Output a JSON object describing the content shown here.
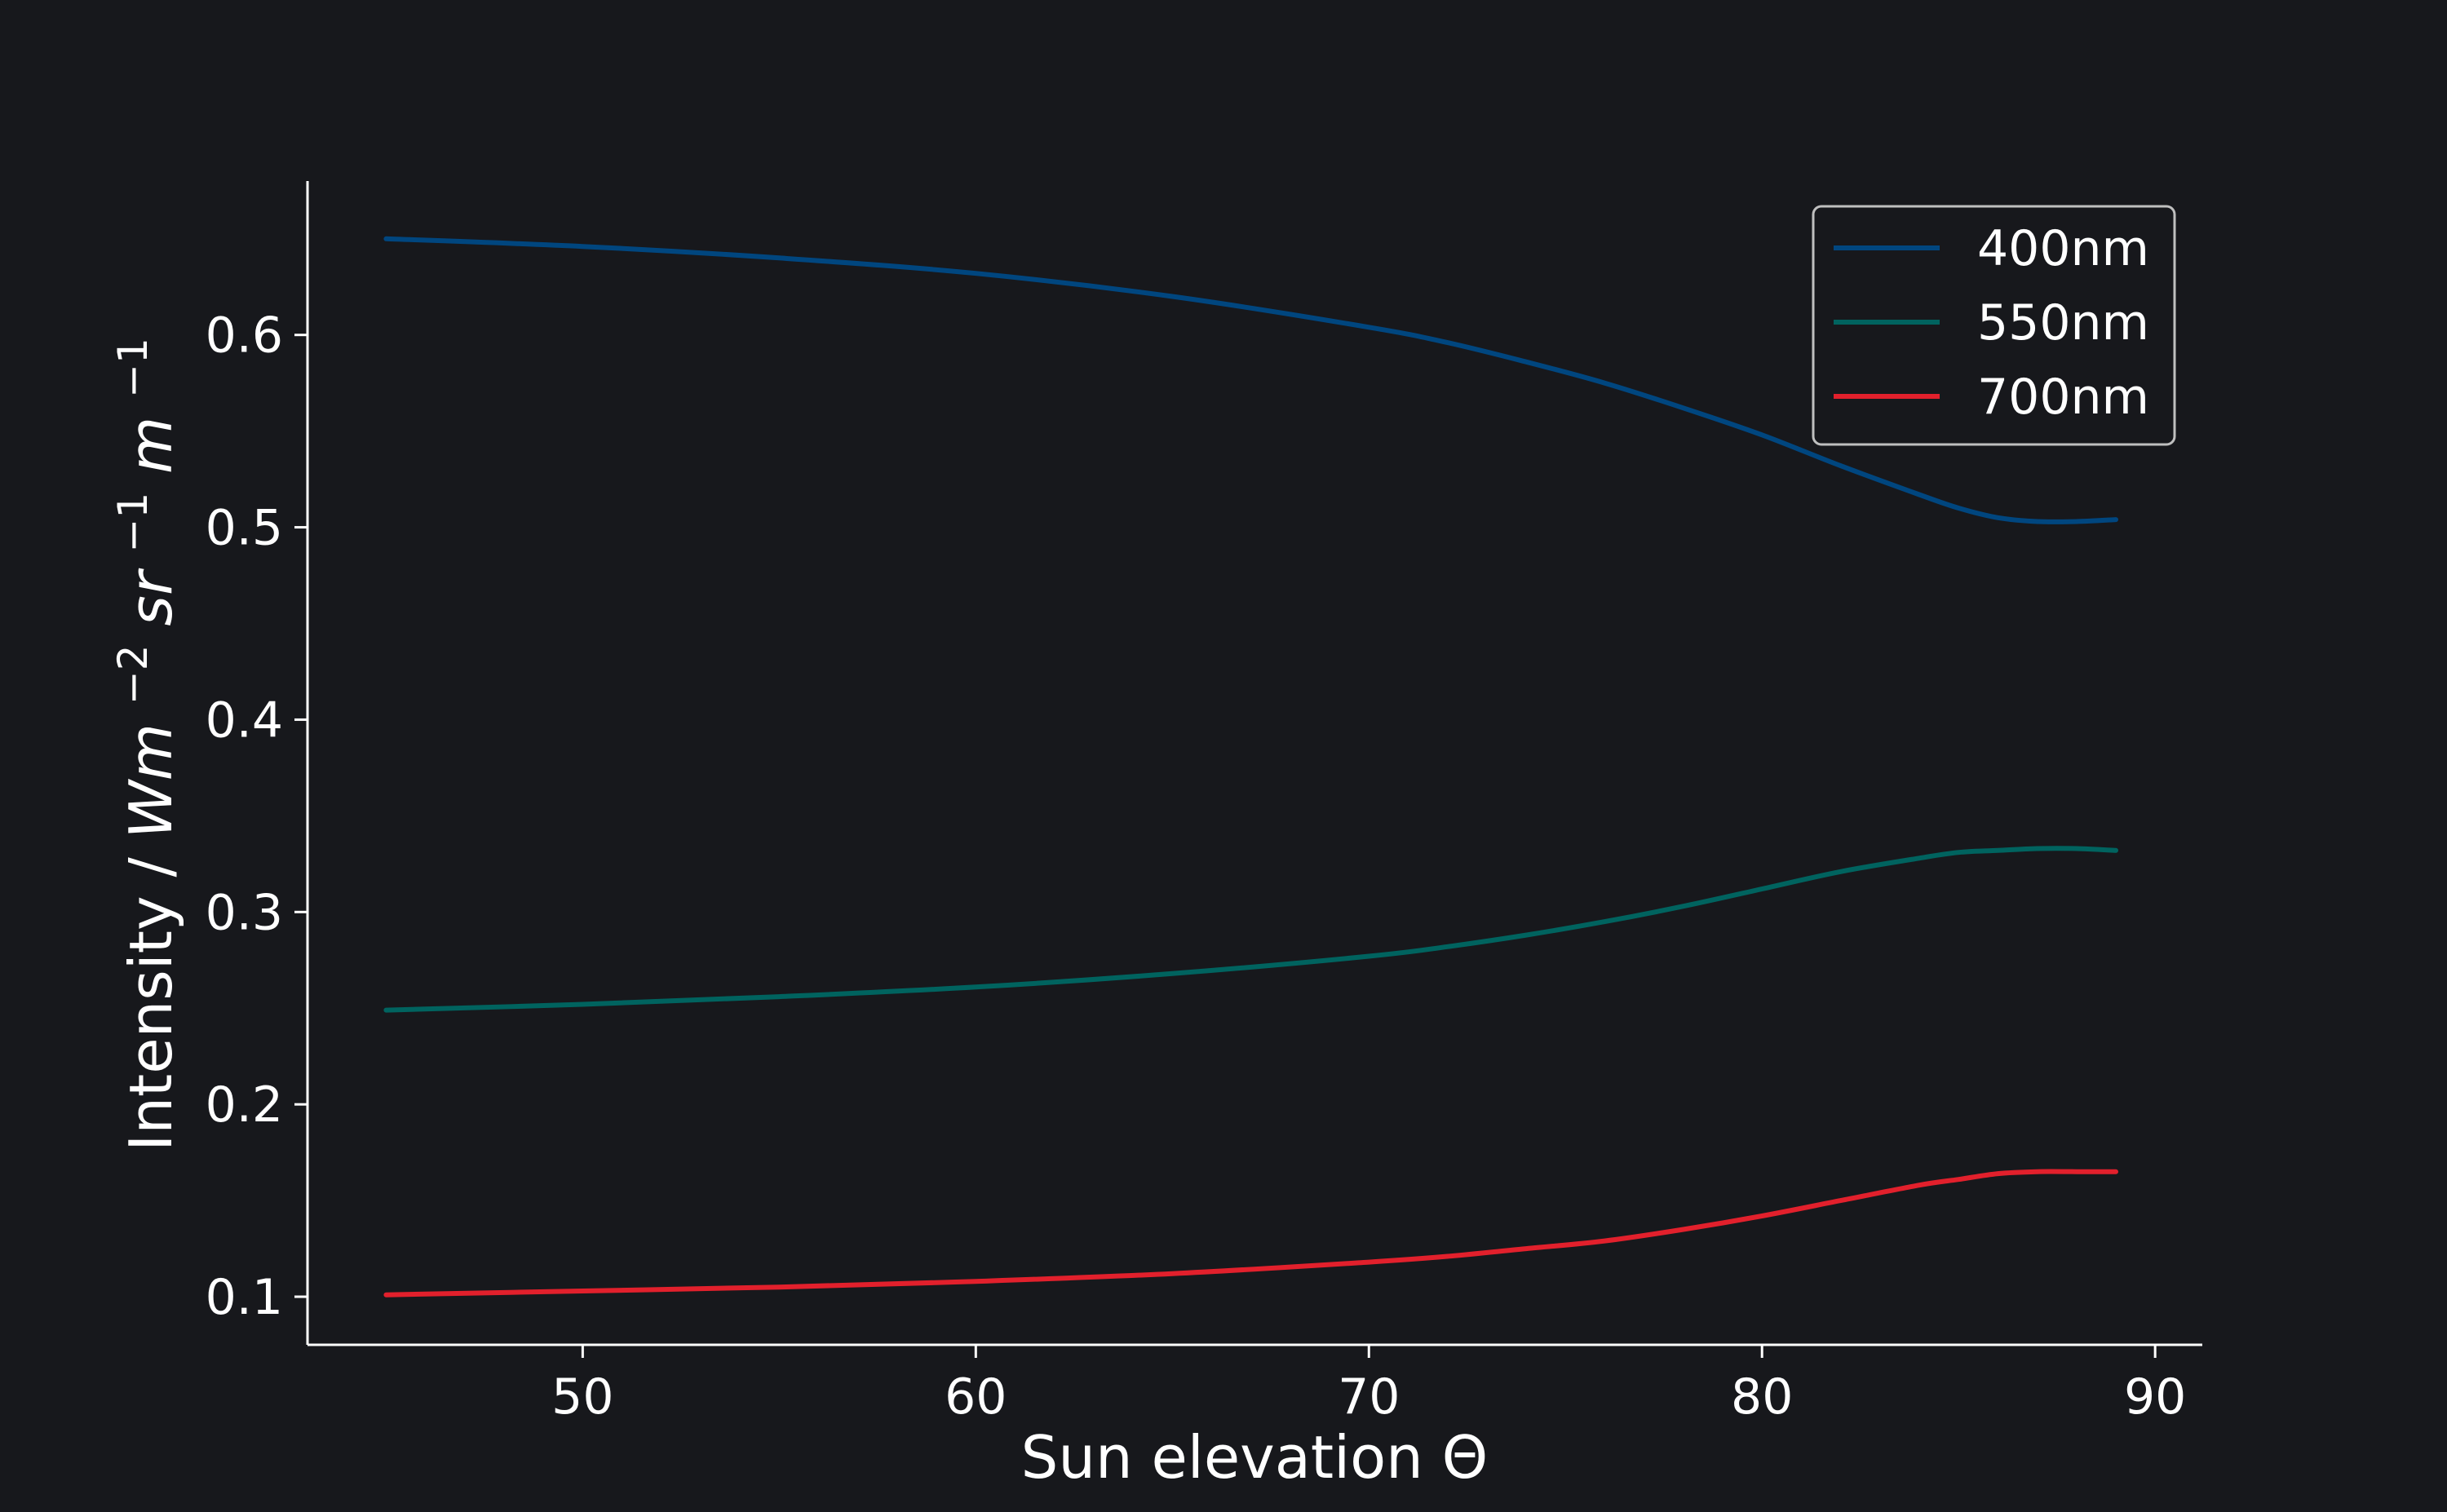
{
  "chart_data": {
    "type": "line",
    "title": "",
    "xlabel": "Sun elevation Θ",
    "ylabel_text": "Intensity / ",
    "ylabel_math": [
      {
        "text": "Wm",
        "sup": "−2"
      },
      {
        "text": "sr",
        "sup": "−1"
      },
      {
        "text": "m",
        "sup": "−1"
      }
    ],
    "xlim": [
      43,
      91.2
    ],
    "ylim": [
      0.075,
      0.68
    ],
    "xticks": [
      50,
      60,
      70,
      80,
      90
    ],
    "yticks": [
      0.1,
      0.2,
      0.3,
      0.4,
      0.5,
      0.6
    ],
    "xtick_labels": [
      "50",
      "60",
      "70",
      "80",
      "90"
    ],
    "ytick_labels": [
      "0.1",
      "0.2",
      "0.3",
      "0.4",
      "0.5",
      "0.6"
    ],
    "grid": false,
    "legend_position": "top-right",
    "x": [
      45,
      50,
      55,
      60,
      65,
      70,
      72,
      74,
      76,
      78,
      80,
      82,
      84,
      85,
      86,
      87,
      88,
      89
    ],
    "series": [
      {
        "name": "400nm",
        "color": "#00467f",
        "values": [
          0.65,
          0.646,
          0.64,
          0.632,
          0.62,
          0.604,
          0.596,
          0.586,
          0.575,
          0.562,
          0.548,
          0.532,
          0.517,
          0.51,
          0.505,
          0.503,
          0.503,
          0.504
        ]
      },
      {
        "name": "550nm",
        "color": "#00635f",
        "values": [
          0.249,
          0.252,
          0.256,
          0.261,
          0.268,
          0.277,
          0.282,
          0.288,
          0.295,
          0.303,
          0.312,
          0.321,
          0.328,
          0.331,
          0.332,
          0.333,
          0.333,
          0.332
        ]
      },
      {
        "name": "700nm",
        "color": "#e2202c",
        "values": [
          0.101,
          0.103,
          0.105,
          0.108,
          0.112,
          0.118,
          0.121,
          0.125,
          0.129,
          0.135,
          0.142,
          0.15,
          0.158,
          0.161,
          0.164,
          0.165,
          0.165,
          0.165
        ]
      }
    ]
  }
}
